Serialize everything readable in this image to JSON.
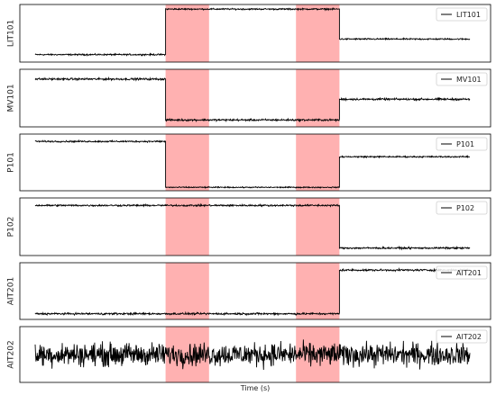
{
  "chart_data": {
    "type": "line",
    "xlabel": "Time (s)",
    "x": [
      0,
      100
    ],
    "attack_windows": [
      [
        30,
        40
      ],
      [
        60,
        70
      ]
    ],
    "shade_color": "#ff9e9e",
    "line_color": "#000000",
    "legend_placement": "top-right",
    "panels": [
      {
        "ylabel": "LIT101",
        "series": [
          {
            "name": "LIT101",
            "segments": [
              {
                "x": [
                  0,
                  30
                ],
                "y": 0.13,
                "noise": 0.018
              },
              {
                "x": [
                  30,
                  70
                ],
                "y": 0.92,
                "noise": 0.018
              },
              {
                "x": [
                  70,
                  100
                ],
                "y": 0.4,
                "noise": 0.018
              }
            ]
          }
        ]
      },
      {
        "ylabel": "MV101",
        "series": [
          {
            "name": "MV101",
            "segments": [
              {
                "x": [
                  0,
                  30
                ],
                "y": 0.83,
                "noise": 0.025
              },
              {
                "x": [
                  30,
                  70
                ],
                "y": 0.12,
                "noise": 0.025
              },
              {
                "x": [
                  70,
                  100
                ],
                "y": 0.48,
                "noise": 0.025
              }
            ]
          }
        ]
      },
      {
        "ylabel": "P101",
        "series": [
          {
            "name": "P101",
            "segments": [
              {
                "x": [
                  0,
                  30
                ],
                "y": 0.87,
                "noise": 0.02
              },
              {
                "x": [
                  30,
                  70
                ],
                "y": 0.06,
                "noise": 0.015
              },
              {
                "x": [
                  70,
                  100
                ],
                "y": 0.6,
                "noise": 0.018
              }
            ]
          }
        ]
      },
      {
        "ylabel": "P102",
        "series": [
          {
            "name": "P102",
            "segments": [
              {
                "x": [
                  0,
                  70
                ],
                "y": 0.87,
                "noise": 0.022
              },
              {
                "x": [
                  70,
                  100
                ],
                "y": 0.13,
                "noise": 0.022
              }
            ]
          }
        ]
      },
      {
        "ylabel": "AIT201",
        "series": [
          {
            "name": "AIT201",
            "segments": [
              {
                "x": [
                  0,
                  70
                ],
                "y": 0.1,
                "noise": 0.025
              },
              {
                "x": [
                  70,
                  100
                ],
                "y": 0.87,
                "noise": 0.025
              }
            ]
          }
        ]
      },
      {
        "ylabel": "AIT202",
        "series": [
          {
            "name": "AIT202",
            "segments": [
              {
                "x": [
                  0,
                  100
                ],
                "y": 0.5,
                "noise": 0.3
              }
            ]
          }
        ]
      }
    ]
  }
}
